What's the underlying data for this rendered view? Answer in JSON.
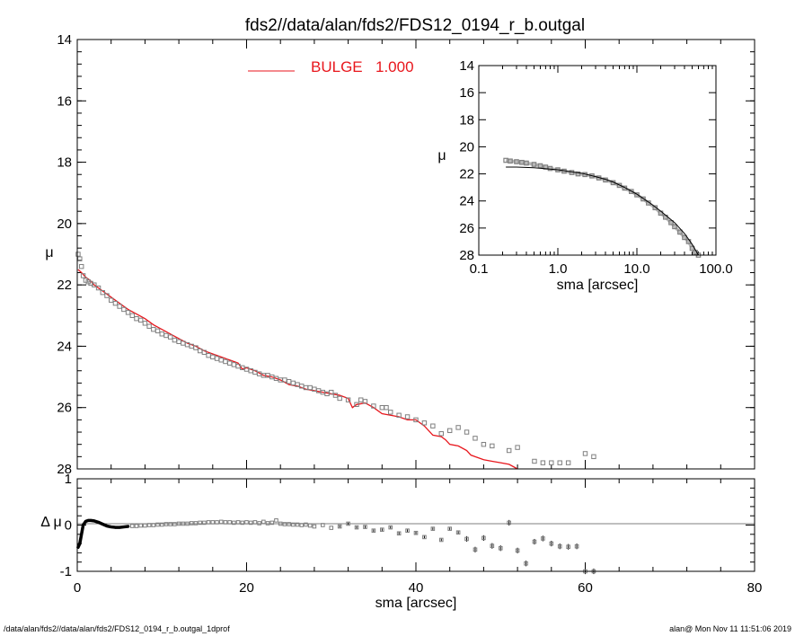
{
  "title": "fds2//data/alan/fds2/FDS12_0194_r_b.outgal",
  "footer": {
    "left": "/data/alan/fds2//data/alan/fds2/FDS12_0194_r_b.outgal_1dprof",
    "right": "alan@  Mon Nov 11 11:51:06 2019"
  },
  "colors": {
    "model": "#e8161c",
    "data": "#7f7f7f",
    "axes": "#000000",
    "zero_line": "#7f7f7f"
  },
  "chart_data": [
    {
      "panel": "main",
      "type": "scatter",
      "title": "fds2//data/alan/fds2/FDS12_0194_r_b.outgal",
      "xlabel": "",
      "ylabel": "μ",
      "xlim": [
        0,
        80
      ],
      "ylim": [
        28,
        14
      ],
      "y_inverted": true,
      "y_ticks": [
        "14",
        "16",
        "18",
        "20",
        "22",
        "24",
        "26",
        "28"
      ],
      "legend": {
        "label": "BULGE",
        "value": "1.000",
        "placement": "top"
      },
      "series": [
        {
          "name": "data",
          "style": "open-squares",
          "x": [
            0.1,
            0.3,
            0.5,
            0.7,
            1.0,
            1.3,
            1.6,
            2.0,
            2.5,
            3.0,
            3.5,
            4.0,
            4.5,
            5.0,
            5.5,
            6.0,
            6.5,
            7.0,
            7.5,
            8.0,
            8.5,
            9.0,
            9.5,
            10.0,
            10.5,
            11.0,
            11.5,
            12.0,
            12.5,
            13.0,
            13.5,
            14.0,
            14.5,
            15.0,
            15.5,
            16.0,
            16.5,
            17.0,
            17.5,
            18.0,
            18.5,
            19.0,
            19.5,
            20.0,
            20.5,
            21.0,
            21.5,
            22.0,
            22.5,
            23.0,
            23.5,
            24.0,
            24.5,
            25.0,
            25.5,
            26.0,
            26.5,
            27.0,
            27.5,
            28.0,
            28.5,
            29.0,
            29.5,
            30.0,
            30.5,
            31.0,
            32.0,
            33.0,
            33.5,
            34.0,
            35.0,
            36.0,
            36.5,
            37.0,
            38.0,
            39.0,
            40.0,
            41.0,
            42.0,
            43.0,
            44.0,
            45.0,
            46.0,
            47.0,
            48.0,
            49.0,
            51.0,
            52.0,
            54.0,
            55.0,
            56.0,
            57.0,
            58.0,
            60.0,
            61.0
          ],
          "y": [
            21.0,
            21.15,
            21.4,
            21.7,
            21.85,
            21.9,
            21.95,
            22.0,
            22.1,
            22.25,
            22.35,
            22.5,
            22.6,
            22.7,
            22.8,
            22.9,
            23.0,
            23.1,
            23.15,
            23.25,
            23.35,
            23.45,
            23.5,
            23.6,
            23.65,
            23.7,
            23.8,
            23.85,
            23.9,
            23.95,
            24.0,
            24.05,
            24.15,
            24.2,
            24.3,
            24.35,
            24.4,
            24.45,
            24.5,
            24.55,
            24.6,
            24.65,
            24.7,
            24.75,
            24.8,
            24.85,
            24.9,
            24.95,
            24.95,
            25.0,
            25.05,
            25.1,
            25.1,
            25.15,
            25.2,
            25.25,
            25.3,
            25.35,
            25.35,
            25.4,
            25.45,
            25.5,
            25.55,
            25.5,
            25.6,
            25.7,
            25.75,
            25.9,
            25.75,
            25.8,
            25.95,
            26.0,
            26.0,
            26.15,
            26.25,
            26.3,
            26.4,
            26.5,
            26.6,
            26.85,
            26.75,
            26.65,
            26.8,
            27.0,
            27.2,
            27.25,
            27.4,
            27.3,
            27.75,
            27.8,
            27.8,
            27.8,
            27.8,
            27.5,
            27.6
          ]
        },
        {
          "name": "BULGE",
          "style": "line",
          "x": [
            0.1,
            0.5,
            1.0,
            1.5,
            2.0,
            3.0,
            4.0,
            5.0,
            6.0,
            7.0,
            8.0,
            9.0,
            10.0,
            11.0,
            12.0,
            13.0,
            14.0,
            15.0,
            16.0,
            17.0,
            18.0,
            19.0,
            19.5,
            20.0,
            21.0,
            22.0,
            23.0,
            24.0,
            25.0,
            26.0,
            27.0,
            28.0,
            29.0,
            30.0,
            31.0,
            32.0,
            32.5,
            33.0,
            34.0,
            35.0,
            36.0,
            37.0,
            38.0,
            39.0,
            40.0,
            41.0,
            42.0,
            43.0,
            43.5,
            44.0,
            45.0,
            46.0,
            46.5,
            47.0,
            48.0,
            49.0,
            50.0,
            51.0,
            52.0
          ],
          "y": [
            21.5,
            21.6,
            21.75,
            21.85,
            22.0,
            22.2,
            22.4,
            22.6,
            22.8,
            22.95,
            23.1,
            23.3,
            23.45,
            23.6,
            23.75,
            23.9,
            24.0,
            24.15,
            24.25,
            24.35,
            24.45,
            24.55,
            24.75,
            24.7,
            24.8,
            24.95,
            25.0,
            25.1,
            25.25,
            25.3,
            25.4,
            25.45,
            25.5,
            25.55,
            25.6,
            25.7,
            26.0,
            25.9,
            25.85,
            26.0,
            26.2,
            26.25,
            26.3,
            26.4,
            26.4,
            26.6,
            26.9,
            26.95,
            27.05,
            27.2,
            27.25,
            27.4,
            27.55,
            27.6,
            27.7,
            27.75,
            27.8,
            27.85,
            28.0
          ]
        }
      ]
    },
    {
      "panel": "inset",
      "type": "scatter",
      "xlabel": "sma [arcsec]",
      "ylabel": "μ",
      "x_scale": "log",
      "xlim": [
        0.1,
        100.0
      ],
      "ylim": [
        28,
        14
      ],
      "y_inverted": true,
      "x_ticks": [
        "0.1",
        "1.0",
        "10.0",
        "100.0"
      ],
      "y_ticks": [
        "14",
        "16",
        "18",
        "20",
        "22",
        "24",
        "26",
        "28"
      ],
      "series": [
        {
          "name": "data",
          "style": "open-squares",
          "x": [
            0.22,
            0.25,
            0.3,
            0.35,
            0.4,
            0.5,
            0.6,
            0.7,
            0.8,
            1.0,
            1.2,
            1.5,
            1.8,
            2.2,
            2.7,
            3.3,
            4.0,
            5.0,
            6.0,
            7.0,
            8.5,
            10.0,
            12.0,
            14.0,
            17.0,
            20.0,
            23.0,
            27.0,
            30.0,
            35.0,
            40.0,
            45.0,
            50.0,
            55.0,
            60.0
          ],
          "y": [
            21.0,
            21.05,
            21.1,
            21.15,
            21.2,
            21.3,
            21.4,
            21.5,
            21.6,
            21.7,
            21.8,
            21.9,
            22.0,
            22.05,
            22.15,
            22.3,
            22.45,
            22.65,
            22.85,
            23.05,
            23.3,
            23.55,
            23.85,
            24.15,
            24.5,
            24.9,
            25.2,
            25.6,
            25.9,
            26.3,
            26.7,
            27.0,
            27.5,
            27.8,
            28.0
          ]
        },
        {
          "name": "model",
          "style": "line",
          "x": [
            0.22,
            0.3,
            0.5,
            0.8,
            1.0,
            1.5,
            2.0,
            3.0,
            4.0,
            5.0,
            7.0,
            10.0,
            15.0,
            20.0,
            30.0,
            40.0,
            50.0,
            60.0
          ],
          "y": [
            21.5,
            21.5,
            21.55,
            21.65,
            21.7,
            21.85,
            21.95,
            22.2,
            22.4,
            22.6,
            23.0,
            23.5,
            24.2,
            24.75,
            25.6,
            26.4,
            27.2,
            28.0
          ]
        }
      ]
    },
    {
      "panel": "residual",
      "type": "scatter",
      "xlabel": "sma [arcsec]",
      "ylabel": "Δ μ",
      "xlim": [
        0,
        80
      ],
      "ylim": [
        -1,
        1
      ],
      "x_ticks": [
        "0",
        "20",
        "40",
        "60",
        "80"
      ],
      "y_ticks": [
        "1",
        "0",
        "-1"
      ],
      "series": [
        {
          "name": "residual-inner",
          "style": "thick-line",
          "x": [
            0.1,
            0.3,
            0.5,
            0.7,
            1.0,
            1.3,
            1.6,
            2.0,
            2.5,
            3.0,
            3.5,
            4.0,
            4.5,
            5.0,
            5.5,
            6.0
          ],
          "y": [
            -0.48,
            -0.4,
            -0.2,
            0.0,
            0.08,
            0.1,
            0.1,
            0.09,
            0.06,
            0.02,
            -0.02,
            -0.04,
            -0.05,
            -0.05,
            -0.04,
            -0.03
          ]
        },
        {
          "name": "residual-points",
          "style": "open-squares-with-errorbars",
          "x": [
            6.5,
            7.0,
            7.5,
            8.0,
            8.5,
            9.0,
            9.5,
            10.0,
            10.5,
            11.0,
            11.5,
            12.0,
            12.5,
            13.0,
            13.5,
            14.0,
            14.5,
            15.0,
            15.5,
            16.0,
            16.5,
            17.0,
            17.5,
            18.0,
            18.5,
            19.0,
            19.5,
            20.0,
            20.5,
            21.0,
            21.5,
            22.0,
            22.5,
            23.0,
            23.5,
            24.0,
            24.5,
            25.0,
            25.5,
            26.0,
            26.5,
            27.0,
            27.5,
            28.0,
            29.0,
            30.0,
            31.0,
            32.0,
            33.0,
            34.0,
            35.0,
            36.0,
            37.0,
            38.0,
            39.0,
            40.0,
            41.0,
            42.0,
            43.0,
            44.0,
            45.0,
            46.0,
            47.0,
            48.0,
            49.0,
            50.0,
            51.0,
            52.0,
            53.0,
            54.0,
            55.0,
            56.0,
            57.0,
            58.0,
            59.0,
            60.0,
            61.0
          ],
          "y": [
            -0.02,
            -0.02,
            -0.01,
            -0.01,
            0.0,
            0.0,
            0.01,
            0.01,
            0.02,
            0.02,
            0.02,
            0.03,
            0.03,
            0.03,
            0.04,
            0.04,
            0.05,
            0.05,
            0.06,
            0.06,
            0.06,
            0.07,
            0.06,
            0.06,
            0.05,
            0.06,
            0.05,
            0.06,
            0.05,
            0.06,
            0.04,
            0.07,
            0.04,
            0.05,
            0.1,
            0.03,
            0.02,
            0.02,
            0.01,
            0.01,
            0.0,
            0.01,
            -0.01,
            -0.03,
            0.0,
            -0.06,
            -0.03,
            0.03,
            -0.05,
            -0.04,
            -0.12,
            -0.1,
            -0.05,
            -0.18,
            -0.12,
            -0.17,
            -0.26,
            -0.08,
            -0.32,
            -0.08,
            -0.16,
            -0.3,
            -0.53,
            -0.28,
            -0.45,
            -0.5,
            0.05,
            -0.55,
            -0.83,
            -0.36,
            -0.29,
            -0.4,
            -0.46,
            -0.47,
            -0.46,
            -1.0,
            -1.0
          ]
        }
      ]
    }
  ]
}
